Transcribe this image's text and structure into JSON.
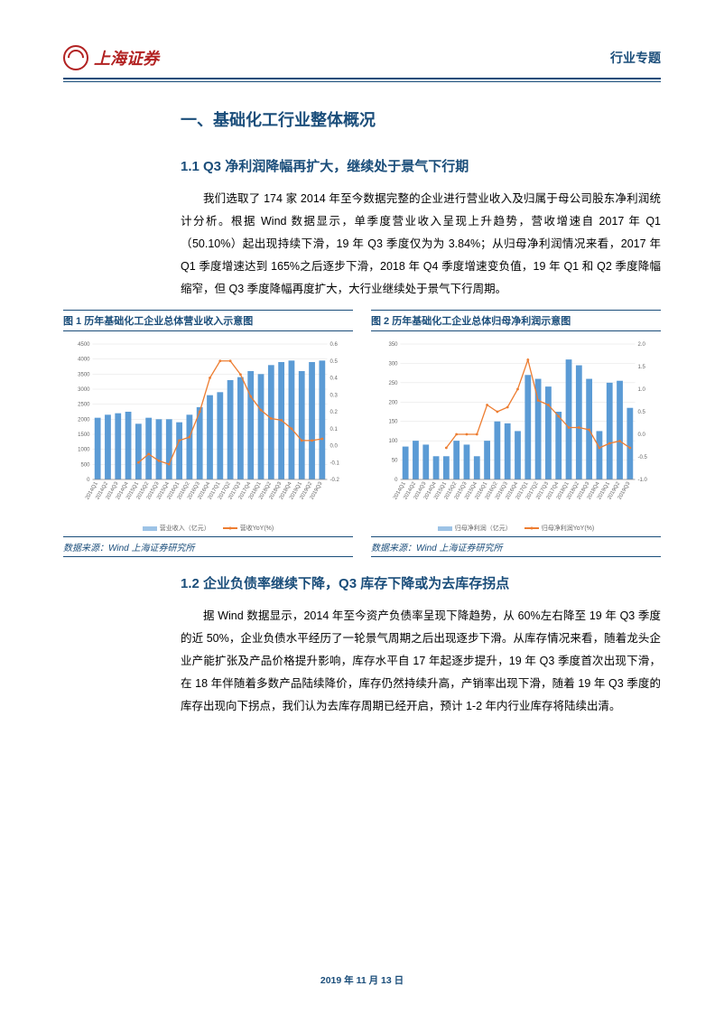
{
  "header": {
    "logo_text": "上海证券",
    "right_label": "行业专题"
  },
  "section1": {
    "title": "一、基础化工行业整体概况",
    "sub1": {
      "title": "1.1 Q3 净利润降幅再扩大，继续处于景气下行期",
      "body": "我们选取了 174 家 2014 年至今数据完整的企业进行营业收入及归属于母公司股东净利润统计分析。根据 Wind 数据显示，单季度营业收入呈现上升趋势，营收增速自 2017 年 Q1（50.10%）起出现持续下滑，19 年 Q3 季度仅为为 3.84%；从归母净利润情况来看，2017 年 Q1 季度增速达到 165%之后逐步下滑，2018 年 Q4 季度增速变负值，19 年 Q1 和 Q2 季度降幅缩窄，但 Q3 季度降幅再度扩大，大行业继续处于景气下行周期。"
    },
    "sub2": {
      "title": "1.2 企业负债率继续下降，Q3 库存下降或为去库存拐点",
      "body": "据 Wind 数据显示，2014 年至今资产负债率呈现下降趋势，从 60%左右降至 19 年 Q3 季度的近 50%，企业负债水平经历了一轮景气周期之后出现逐步下滑。从库存情况来看，随着龙头企业产能扩张及产品价格提升影响，库存水平自 17 年起逐步提升，19 年 Q3 季度首次出现下滑，在 18 年伴随着多数产品陆续降价，库存仍然持续升高，产销率出现下滑，随着 19 年 Q3 季度的库存出现向下拐点，我们认为去库存周期已经开启，预计 1-2 年内行业库存将陆续出清。"
    }
  },
  "chart1": {
    "title": "图 1 历年基础化工企业总体营业收入示意图",
    "source": "数据来源：Wind 上海证券研究所",
    "type": "bar+line",
    "categories": [
      "2014Q1",
      "2014Q2",
      "2014Q3",
      "2014Q4",
      "2015Q1",
      "2015Q2",
      "2015Q3",
      "2015Q4",
      "2016Q1",
      "2016Q2",
      "2016Q3",
      "2016Q4",
      "2017Q1",
      "2017Q2",
      "2017Q3",
      "2017Q4",
      "2018Q1",
      "2018Q2",
      "2018Q3",
      "2018Q4",
      "2019Q1",
      "2019Q2",
      "2019Q3"
    ],
    "bar_values": [
      2050,
      2150,
      2200,
      2250,
      1850,
      2050,
      2000,
      2000,
      1900,
      2150,
      2400,
      2800,
      2900,
      3300,
      3400,
      3600,
      3500,
      3800,
      3900,
      3950,
      3600,
      3900,
      3950
    ],
    "line_values": [
      null,
      null,
      null,
      null,
      -0.1,
      -0.05,
      -0.09,
      -0.11,
      0.03,
      0.05,
      0.2,
      0.4,
      0.5,
      0.5,
      0.42,
      0.29,
      0.21,
      0.16,
      0.15,
      0.1,
      0.03,
      0.03,
      0.04
    ],
    "y1_min": 0,
    "y1_max": 4500,
    "y1_step": 500,
    "y2_min": -0.2,
    "y2_max": 0.6,
    "y2_step": 0.1,
    "bar_color": "#5b9bd5",
    "line_color": "#ed7d31",
    "grid_color": "#e0e0e0",
    "bar_legend": "营业收入（亿元）",
    "line_legend": "营收YoY(%)",
    "label_fontsize": 6
  },
  "chart2": {
    "title": "图 2 历年基础化工企业总体归母净利润示意图",
    "source": "数据来源：Wind 上海证券研究所",
    "type": "bar+line",
    "categories": [
      "2014Q1",
      "2014Q2",
      "2014Q3",
      "2014Q4",
      "2015Q1",
      "2015Q2",
      "2015Q3",
      "2015Q4",
      "2016Q1",
      "2016Q2",
      "2016Q3",
      "2016Q4",
      "2017Q1",
      "2017Q2",
      "2017Q3",
      "2017Q4",
      "2018Q1",
      "2018Q2",
      "2018Q3",
      "2018Q4",
      "2019Q1",
      "2019Q2",
      "2019Q3"
    ],
    "bar_values": [
      85,
      100,
      90,
      60,
      60,
      100,
      90,
      60,
      100,
      150,
      145,
      125,
      270,
      260,
      240,
      175,
      310,
      295,
      260,
      125,
      250,
      255,
      185
    ],
    "line_values": [
      null,
      null,
      null,
      null,
      -0.3,
      0.0,
      0.0,
      0.0,
      0.65,
      0.5,
      0.6,
      1.0,
      1.65,
      0.75,
      0.65,
      0.4,
      0.15,
      0.15,
      0.1,
      -0.3,
      -0.2,
      -0.15,
      -0.3
    ],
    "y1_min": 0,
    "y1_max": 350,
    "y1_step": 50,
    "y2_min": -1.0,
    "y2_max": 2.0,
    "y2_step": 0.5,
    "bar_color": "#5b9bd5",
    "line_color": "#ed7d31",
    "grid_color": "#e0e0e0",
    "bar_legend": "归母净利润（亿元）",
    "line_legend": "归母净利润YoY(%)",
    "label_fontsize": 6
  },
  "footer": {
    "date": "2019 年 11 月 13 日"
  }
}
